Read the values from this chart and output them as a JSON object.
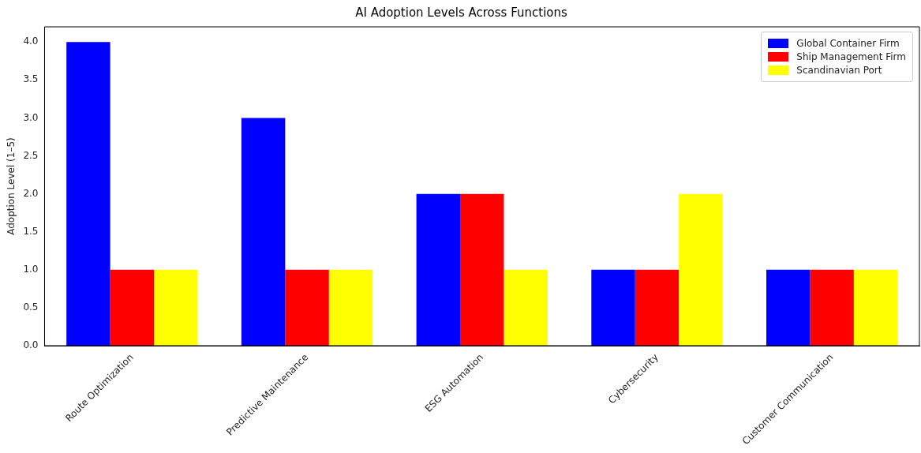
{
  "chart_data": {
    "type": "bar",
    "title": "AI Adoption Levels Across Functions",
    "ylabel": "Adoption Level (1–5)",
    "categories": [
      "Route Optimization",
      "Predictive Maintenance",
      "ESG Automation",
      "Cybersecurity",
      "Customer Communication"
    ],
    "series": [
      {
        "name": "Global Container Firm",
        "color": "#0000ff",
        "values": [
          4,
          3,
          2,
          1,
          1
        ]
      },
      {
        "name": "Ship Management Firm",
        "color": "#ff0000",
        "values": [
          1,
          1,
          2,
          1,
          1
        ]
      },
      {
        "name": "Scandinavian Port",
        "color": "#ffff00",
        "values": [
          1,
          1,
          1,
          2,
          1
        ]
      }
    ],
    "ylim": [
      0,
      4.2
    ],
    "yticks": [
      {
        "value": 0,
        "label": "0.0"
      },
      {
        "value": 0.5,
        "label": "0.5"
      },
      {
        "value": 1,
        "label": "1.0"
      },
      {
        "value": 1.5,
        "label": "1.5"
      },
      {
        "value": 2,
        "label": "2.0"
      },
      {
        "value": 2.5,
        "label": "2.5"
      },
      {
        "value": 3,
        "label": "3.0"
      },
      {
        "value": 3.5,
        "label": "3.5"
      },
      {
        "value": 4,
        "label": "4.0"
      }
    ],
    "grid": false,
    "legend": "top right"
  }
}
